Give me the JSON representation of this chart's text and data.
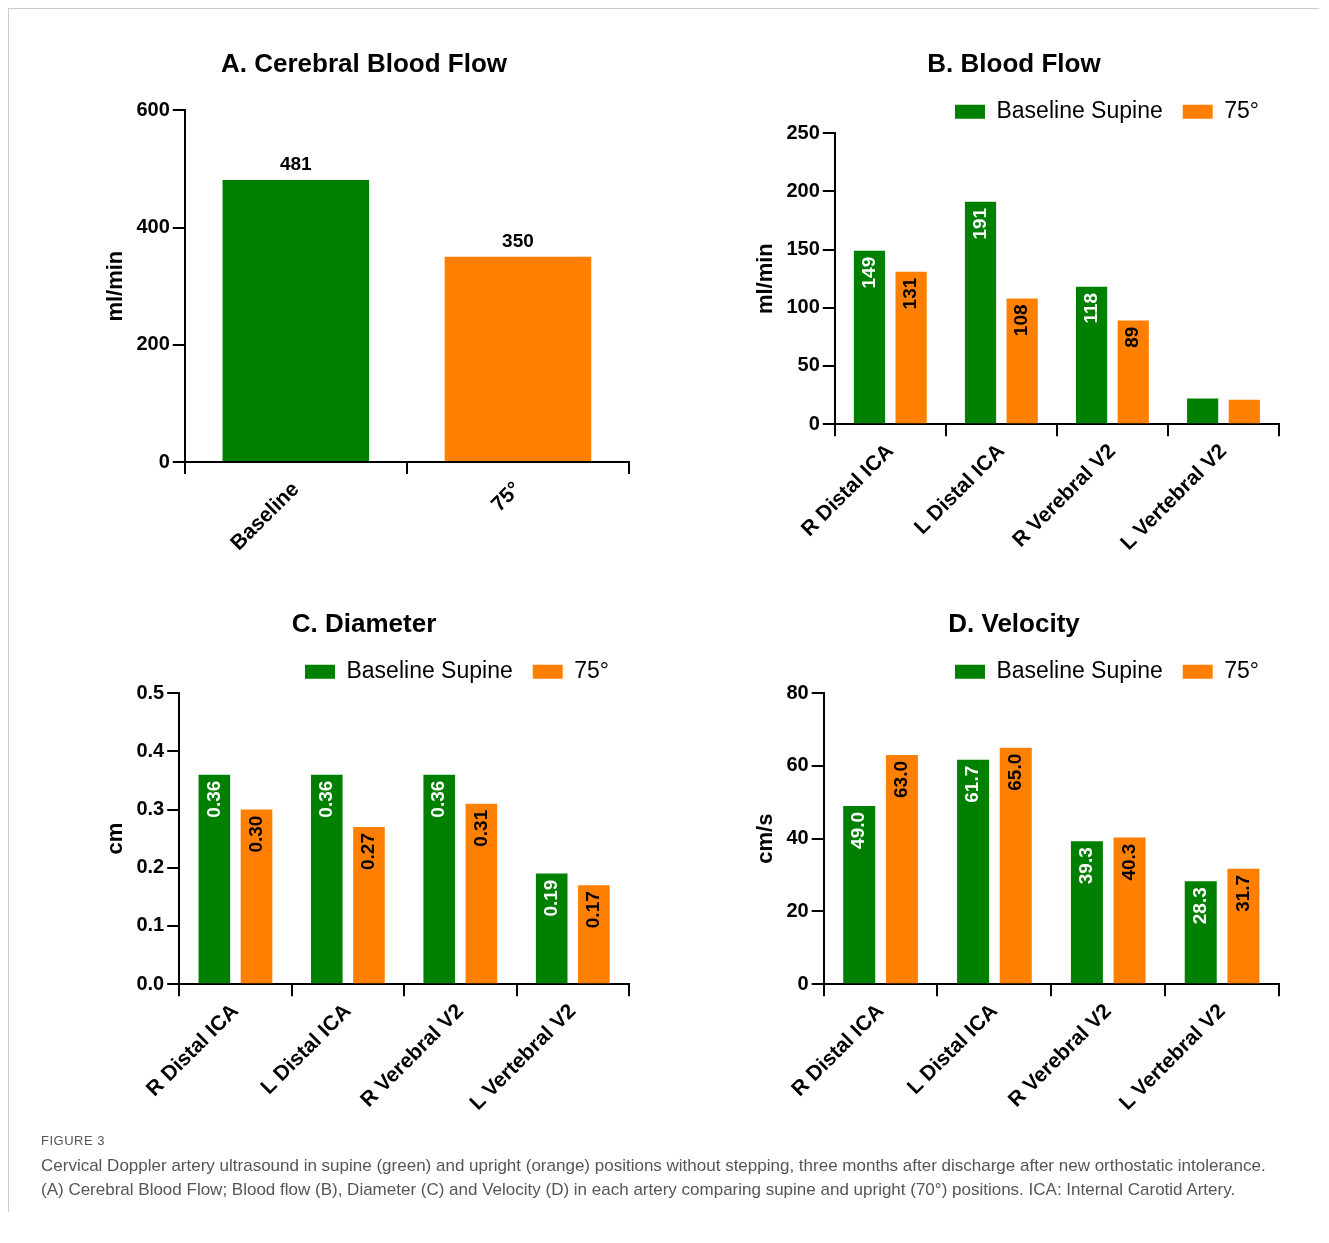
{
  "chart_data": [
    {
      "type": "bar",
      "title": "A. Cerebral Blood Flow",
      "ylabel": "ml/min",
      "categories": [
        "Baseline",
        "75°"
      ],
      "values": [
        481,
        350
      ],
      "colors": [
        "#008000",
        "#ff8000"
      ],
      "ylim": [
        0,
        600
      ],
      "yticks": [
        0,
        200,
        400,
        600
      ],
      "data_labels": true
    },
    {
      "type": "bar",
      "title": "B. Blood Flow",
      "ylabel": "ml/min",
      "categories": [
        "R Distal ICA",
        "L Distal ICA",
        "R Verebral V2",
        "L Vertebral V2"
      ],
      "legend": "top right",
      "ylim": [
        0,
        250
      ],
      "yticks": [
        0,
        50,
        100,
        150,
        200,
        250
      ],
      "series": [
        {
          "name": "Baseline Supine",
          "color": "#008000",
          "values": [
            149,
            191,
            118,
            22
          ],
          "value_labels": [
            "149",
            "191",
            "118",
            null
          ]
        },
        {
          "name": "75°",
          "color": "#ff8000",
          "values": [
            131,
            108,
            89,
            21
          ],
          "value_labels": [
            "131",
            "108",
            "89",
            null
          ]
        }
      ]
    },
    {
      "type": "bar",
      "title": "C. Diameter",
      "ylabel": "cm",
      "categories": [
        "R Distal ICA",
        "L Distal ICA",
        "R Verebral V2",
        "L Vertebral V2"
      ],
      "legend": "top right",
      "ylim": [
        0,
        0.5
      ],
      "yticks": [
        {
          "value": 0,
          "label": "0.0"
        },
        0.1,
        0.2,
        0.3,
        0.4,
        0.5
      ],
      "series": [
        {
          "name": "Baseline Supine",
          "color": "#008000",
          "values": [
            0.36,
            0.36,
            0.36,
            0.19
          ],
          "value_labels": [
            "0.36",
            "0.36",
            "0.36",
            "0.19"
          ]
        },
        {
          "name": "75°",
          "color": "#ff8000",
          "values": [
            0.3,
            0.27,
            0.31,
            0.17
          ],
          "value_labels": [
            "0.30",
            "0.27",
            "0.31",
            "0.17"
          ]
        }
      ]
    },
    {
      "type": "bar",
      "title": "D. Velocity",
      "ylabel": "cm/s",
      "categories": [
        "R Distal ICA",
        "L Distal ICA",
        "R Verebral V2",
        "L Vertebral V2"
      ],
      "legend": "top right",
      "ylim": [
        0,
        80
      ],
      "yticks": [
        0,
        20,
        40,
        60,
        80
      ],
      "series": [
        {
          "name": "Baseline Supine",
          "color": "#008000",
          "values": [
            49.0,
            61.7,
            39.3,
            28.3
          ],
          "value_labels": [
            "49.0",
            "61.7",
            "39.3",
            "28.3"
          ]
        },
        {
          "name": "75°",
          "color": "#ff8000",
          "values": [
            63.0,
            65.0,
            40.3,
            31.7
          ],
          "value_labels": [
            "63.0",
            "65.0",
            "40.3",
            "31.7"
          ]
        }
      ],
      "annotations": [
        "FIGURE 3",
        "Cervical Doppler artery ultrasound in supine (green) and upright (orange) positions without stepping, three months after discharge after new orthostatic intolerance. (A) Cerebral Blood Flow; Blood flow (B), Diameter (C) and Velocity (D) in each artery comparing supine and upright (70°) positions. ICA: Internal Carotid Artery."
      ]
    }
  ]
}
